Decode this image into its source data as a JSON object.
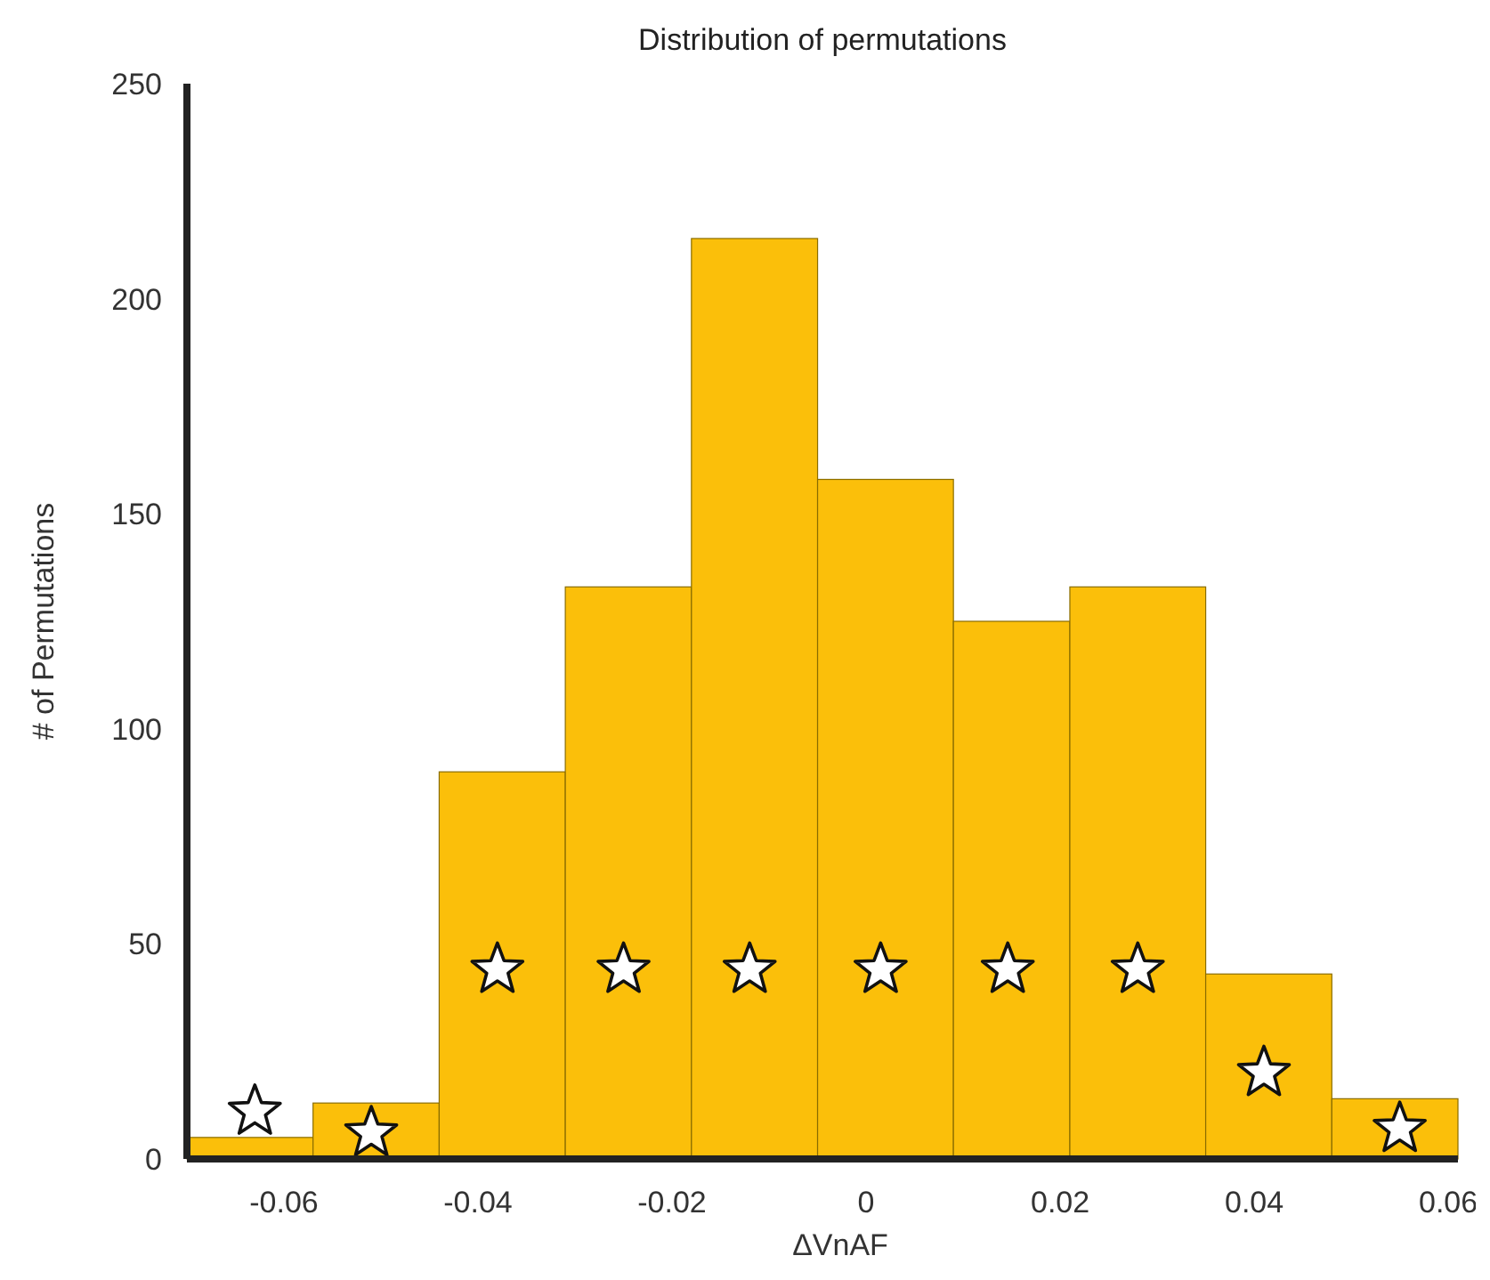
{
  "chart_data": {
    "type": "histogram",
    "title": "Distribution of permutations",
    "xlabel": "ΔVnAF",
    "ylabel": "# of Permutations",
    "bins": [
      -0.07,
      -0.057,
      -0.044,
      -0.031,
      -0.018,
      -0.005,
      0.009,
      0.021,
      0.035,
      0.048,
      0.061
    ],
    "values": [
      5,
      13,
      90,
      133,
      214,
      158,
      125,
      133,
      43,
      14
    ],
    "color": "#fbbf0a",
    "series": [
      {
        "type": "scatter",
        "color": "#ffffff",
        "marker": "star",
        "x": [
          -0.063,
          -0.051,
          -0.038,
          -0.025,
          -0.012,
          0.0015,
          0.0146,
          0.028,
          0.041,
          0.055
        ],
        "values": [
          11,
          6,
          44,
          44,
          44,
          44,
          44,
          44,
          20,
          7
        ]
      }
    ],
    "xlim": [
      -0.07,
      0.061
    ],
    "xticks": [
      -0.06,
      -0.04,
      -0.02,
      0,
      0.02,
      0.04,
      0.06
    ],
    "ylim": [
      0,
      250
    ],
    "yticks": [
      0,
      50,
      100,
      150,
      200,
      250
    ],
    "grid": false
  }
}
